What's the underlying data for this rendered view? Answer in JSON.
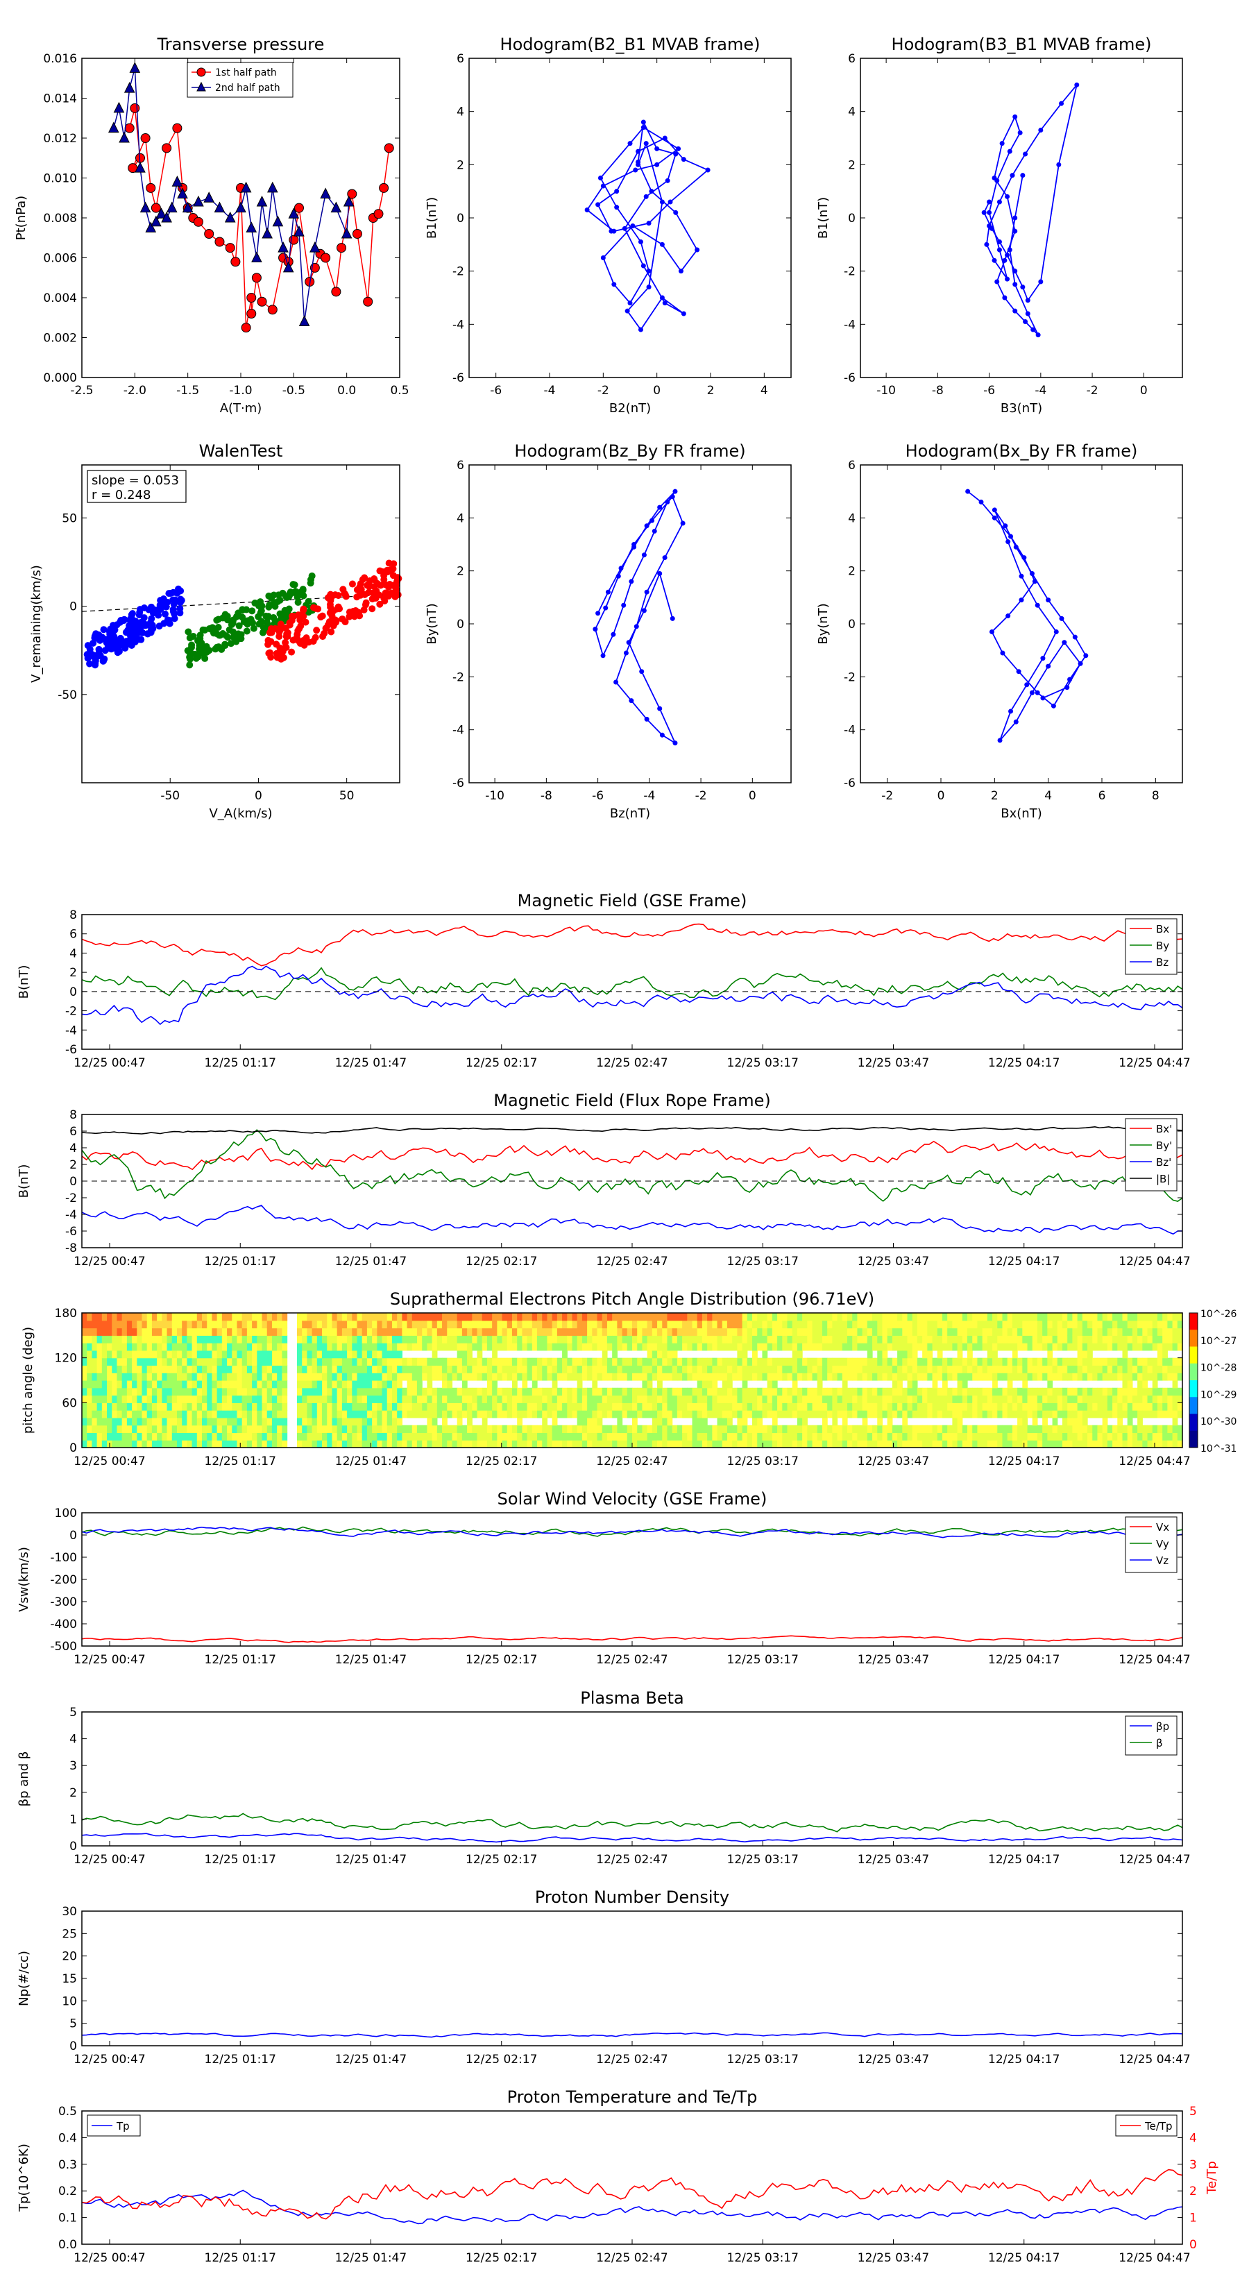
{
  "figure_title": "",
  "chart_data": [
    {
      "id": "tp",
      "type": "scatter",
      "title": "Transverse pressure",
      "xlabel": "A(T·m)",
      "ylabel": "Pt(nPa)",
      "xlim": [
        -2.5,
        0.5
      ],
      "ylim": [
        0,
        0.016
      ],
      "xticks": [
        "-2.5",
        "-2.0",
        "-1.5",
        "-1.0",
        "-0.5",
        "0.0",
        "0.5"
      ],
      "yticks": [
        "0.000",
        "0.002",
        "0.004",
        "0.006",
        "0.008",
        "0.010",
        "0.012",
        "0.014",
        "0.016"
      ],
      "legend": "top-center",
      "series": [
        {
          "name": "1st half path",
          "color": "#ff0000",
          "marker": "circle",
          "x": [
            -2.05,
            -2.0,
            -1.95,
            -2.02,
            -1.9,
            -1.85,
            -1.8,
            -1.7,
            -1.6,
            -1.55,
            -1.5,
            -1.45,
            -1.4,
            -1.3,
            -1.2,
            -1.1,
            -1.05,
            -1.0,
            -0.95,
            -0.9,
            -0.9,
            -0.85,
            -0.8,
            -0.7,
            -0.6,
            -0.55,
            -0.5,
            -0.45,
            -0.35,
            -0.3,
            -0.25,
            -0.2,
            -0.1,
            -0.05,
            0.05,
            0.1,
            0.2,
            0.25,
            0.3,
            0.35,
            0.4
          ],
          "y": [
            0.0125,
            0.0135,
            0.011,
            0.0105,
            0.012,
            0.0095,
            0.0085,
            0.0115,
            0.0125,
            0.0095,
            0.0085,
            0.008,
            0.0078,
            0.0072,
            0.0068,
            0.0065,
            0.0058,
            0.0095,
            0.0025,
            0.004,
            0.0032,
            0.005,
            0.0038,
            0.0034,
            0.006,
            0.0058,
            0.0069,
            0.0085,
            0.0048,
            0.0055,
            0.0062,
            0.006,
            0.0043,
            0.0065,
            0.0092,
            0.0072,
            0.0038,
            0.008,
            0.0082,
            0.0095,
            0.0115
          ]
        },
        {
          "name": "2nd half path",
          "color": "#000099",
          "marker": "triangle",
          "x": [
            -2.2,
            -2.15,
            -2.1,
            -2.05,
            -2.0,
            -1.95,
            -1.9,
            -1.85,
            -1.8,
            -1.75,
            -1.7,
            -1.65,
            -1.6,
            -1.55,
            -1.5,
            -1.4,
            -1.3,
            -1.2,
            -1.1,
            -1.0,
            -0.95,
            -0.9,
            -0.85,
            -0.8,
            -0.75,
            -0.7,
            -0.65,
            -0.6,
            -0.55,
            -0.5,
            -0.45,
            -0.4,
            -0.3,
            -0.2,
            -0.1,
            0.0,
            0.02
          ],
          "y": [
            0.0125,
            0.0135,
            0.012,
            0.0145,
            0.0155,
            0.0105,
            0.0085,
            0.0075,
            0.0078,
            0.0082,
            0.008,
            0.0085,
            0.0098,
            0.0092,
            0.0085,
            0.0088,
            0.009,
            0.0085,
            0.008,
            0.0085,
            0.0095,
            0.0075,
            0.006,
            0.0088,
            0.0072,
            0.0095,
            0.0078,
            0.0065,
            0.0055,
            0.0082,
            0.0073,
            0.0028,
            0.0065,
            0.0092,
            0.0085,
            0.0072,
            0.0088
          ]
        }
      ]
    },
    {
      "id": "h1",
      "type": "line",
      "title": "Hodogram(B2_B1 MVAB frame)",
      "xlabel": "B2(nT)",
      "ylabel": "B1(nT)",
      "xlim": [
        -7,
        5
      ],
      "ylim": [
        -6,
        6
      ],
      "xticks": [
        "-6",
        "-4",
        "-2",
        "0",
        "2",
        "4"
      ],
      "yticks": [
        "-6",
        "-4",
        "-2",
        "0",
        "2",
        "4",
        "6"
      ],
      "color": "#0000ff",
      "x": [
        -1.7,
        -2.2,
        -1.5,
        -0.7,
        0.3,
        1.0,
        1.9,
        0.5,
        -0.3,
        -1.6,
        -2.6,
        -2.0,
        -0.8,
        0.0,
        0.8,
        -0.5,
        -1.0,
        -2.1,
        -1.5,
        -0.6,
        -0.3,
        -1.0,
        -1.6,
        -2.0,
        -0.9,
        0.2,
        0.9,
        1.5,
        0.7,
        -0.2,
        -0.7,
        -0.5,
        0.0,
        0.7,
        0.4,
        -0.4,
        -1.2,
        -0.5,
        0.3,
        1.0,
        0.2,
        -0.6,
        -1.1,
        -0.3,
        0.2,
        -0.4,
        -0.7
      ],
      "y": [
        -0.5,
        0.5,
        1.0,
        2.5,
        3.0,
        2.2,
        1.8,
        0.6,
        -0.2,
        -0.5,
        0.3,
        1.2,
        1.8,
        2.0,
        2.6,
        3.4,
        2.8,
        1.5,
        0.4,
        -0.9,
        -2.0,
        -3.2,
        -2.5,
        -1.5,
        -0.3,
        -1.0,
        -2.0,
        -1.2,
        0.2,
        1.0,
        2.1,
        3.6,
        2.6,
        2.4,
        1.4,
        0.8,
        -0.4,
        -1.8,
        -3.2,
        -3.6,
        -3.0,
        -4.2,
        -3.5,
        -2.6,
        0.6,
        2.8,
        2.0
      ]
    },
    {
      "id": "h2",
      "type": "line",
      "title": "Hodogram(B3_B1 MVAB frame)",
      "xlabel": "B3(nT)",
      "ylabel": "B1(nT)",
      "xlim": [
        -11,
        1.5
      ],
      "ylim": [
        -6,
        6
      ],
      "xticks": [
        "-10",
        "-8",
        "-6",
        "-4",
        "-2",
        "0"
      ],
      "yticks": [
        "-6",
        "-4",
        "-2",
        "0",
        "2",
        "4",
        "6"
      ],
      "color": "#0000ff",
      "x": [
        -6.0,
        -6.2,
        -5.9,
        -5.6,
        -5.3,
        -5.0,
        -4.7,
        -4.5,
        -4.0,
        -3.3,
        -2.6,
        -3.2,
        -4.0,
        -4.6,
        -5.1,
        -5.6,
        -6.0,
        -6.1,
        -5.8,
        -5.3,
        -5.6,
        -6.0,
        -5.7,
        -5.2,
        -4.8,
        -5.0,
        -5.5,
        -5.8,
        -5.3,
        -5.0,
        -5.4,
        -5.7,
        -5.4,
        -5.0,
        -4.6,
        -4.3,
        -4.1,
        -4.5,
        -5.0,
        -5.2,
        -5.0,
        -4.7
      ],
      "y": [
        0.6,
        0.2,
        -0.4,
        -0.9,
        -1.4,
        -2.0,
        -2.6,
        -3.1,
        -2.4,
        2.0,
        5.0,
        4.3,
        3.3,
        2.4,
        1.6,
        0.6,
        -0.3,
        -1.0,
        -1.6,
        -2.3,
        -1.2,
        0.2,
        1.4,
        2.5,
        3.2,
        3.8,
        2.8,
        1.5,
        0.8,
        -0.5,
        -1.6,
        -2.4,
        -3.0,
        -3.5,
        -3.9,
        -4.2,
        -4.4,
        -3.6,
        -2.5,
        -1.2,
        0.0,
        1.6
      ]
    },
    {
      "id": "walen",
      "type": "scatter",
      "title": "WalenTest",
      "xlabel": "V_A(km/s)",
      "ylabel": "V_remaining(km/s)",
      "xlim": [
        -100,
        80
      ],
      "ylim": [
        -100,
        80
      ],
      "xticks": [
        "-50",
        "0",
        "50"
      ],
      "yticks": [
        "-50",
        "0",
        "50"
      ],
      "annotations": [
        "slope = 0.053",
        "r = 0.248"
      ],
      "clusters": [
        {
          "color": "#0000ff",
          "x_range": [
            -97,
            -42
          ],
          "y_center": -12,
          "slope": 0.55,
          "spread": 9
        },
        {
          "color": "#008000",
          "x_range": [
            -40,
            32
          ],
          "y_center": -8,
          "slope": 0.45,
          "spread": 10
        },
        {
          "color": "#ff0000",
          "x_range": [
            5,
            80
          ],
          "y_center": -3,
          "slope": 0.55,
          "spread": 11
        }
      ]
    },
    {
      "id": "h3",
      "type": "line",
      "title": "Hodogram(Bz_By FR frame)",
      "xlabel": "Bz(nT)",
      "ylabel": "By(nT)",
      "xlim": [
        -11,
        1.5
      ],
      "ylim": [
        -6,
        6
      ],
      "xticks": [
        "-10",
        "-8",
        "-6",
        "-4",
        "-2",
        "0"
      ],
      "yticks": [
        "-6",
        "-4",
        "-2",
        "0",
        "2",
        "4",
        "6"
      ],
      "color": "#0000ff",
      "x": [
        -6.0,
        -5.6,
        -5.1,
        -4.6,
        -4.1,
        -3.6,
        -3.0,
        -3.3,
        -3.8,
        -4.2,
        -4.7,
        -5.0,
        -5.4,
        -5.8,
        -6.1,
        -5.7,
        -5.2,
        -4.6,
        -3.9,
        -3.1,
        -2.7,
        -3.4,
        -4.1,
        -4.5,
        -4.9,
        -5.3,
        -4.7,
        -4.1,
        -3.5,
        -3.0,
        -3.6,
        -4.3,
        -4.8,
        -4.2,
        -3.6,
        -3.1
      ],
      "y": [
        0.4,
        1.2,
        2.1,
        2.9,
        3.7,
        4.4,
        5.0,
        4.6,
        3.5,
        2.6,
        1.6,
        0.7,
        -0.4,
        -1.2,
        -0.2,
        0.6,
        1.8,
        3.0,
        3.9,
        4.8,
        3.8,
        2.5,
        1.2,
        -0.1,
        -1.1,
        -2.2,
        -2.9,
        -3.6,
        -4.2,
        -4.5,
        -3.2,
        -1.8,
        -0.7,
        0.5,
        1.9,
        0.2
      ]
    },
    {
      "id": "h4",
      "type": "line",
      "title": "Hodogram(Bx_By FR frame)",
      "xlabel": "Bx(nT)",
      "ylabel": "By(nT)",
      "xlim": [
        -3,
        9
      ],
      "ylim": [
        -6,
        6
      ],
      "xticks": [
        "-2",
        "0",
        "2",
        "4",
        "6",
        "8"
      ],
      "yticks": [
        "-6",
        "-4",
        "-2",
        "0",
        "2",
        "4",
        "6"
      ],
      "color": "#0000ff",
      "x": [
        1.0,
        1.5,
        2.0,
        2.6,
        3.1,
        3.5,
        3.0,
        2.5,
        1.9,
        2.3,
        2.9,
        3.6,
        4.2,
        4.8,
        5.4,
        5.0,
        4.5,
        4.0,
        3.4,
        2.8,
        2.4,
        2.0,
        2.5,
        3.0,
        3.6,
        4.3,
        3.8,
        3.2,
        2.6,
        2.2,
        2.8,
        3.4,
        4.0,
        4.6,
        5.2,
        4.7,
        3.8
      ],
      "y": [
        5.0,
        4.6,
        4.0,
        3.3,
        2.5,
        1.6,
        0.9,
        0.3,
        -0.3,
        -1.1,
        -1.8,
        -2.6,
        -3.1,
        -2.1,
        -1.2,
        -0.5,
        0.2,
        0.9,
        1.9,
        2.9,
        3.7,
        4.3,
        3.1,
        1.8,
        0.7,
        -0.3,
        -1.3,
        -2.3,
        -3.3,
        -4.4,
        -3.7,
        -2.6,
        -1.6,
        -0.7,
        -1.5,
        -2.4,
        -2.8
      ]
    },
    {
      "id": "ts1",
      "type": "line",
      "title": "Magnetic Field (GSE Frame)",
      "ylabel": "B(nT)",
      "ylim": [
        -6,
        8
      ],
      "yticks": [
        "-6",
        "-4",
        "-2",
        "0",
        "2",
        "4",
        "6",
        "8"
      ],
      "zero_line": true,
      "legend": "top-right",
      "series": [
        {
          "name": "Bx",
          "color": "#ff0000",
          "start": [
            5.5,
            4.8,
            4.0,
            3.2,
            4.5
          ],
          "mean": 6.0,
          "noise": 0.35
        },
        {
          "name": "By",
          "color": "#008000",
          "start": [
            1.5,
            1.0,
            0.0,
            -1.0,
            2.0
          ],
          "mean": 0.6,
          "noise": 0.6
        },
        {
          "name": "Bz",
          "color": "#0000ff",
          "start": [
            -2.0,
            -4.0,
            2.0,
            3.5,
            1.0
          ],
          "mean": -0.8,
          "noise": 0.5
        }
      ]
    },
    {
      "id": "ts2",
      "type": "line",
      "title": "Magnetic Field (Flux Rope Frame)",
      "ylabel": "B(nT)",
      "ylim": [
        -8,
        8
      ],
      "yticks": [
        "-8",
        "-6",
        "-4",
        "-2",
        "0",
        "2",
        "4",
        "6",
        "8"
      ],
      "zero_line": true,
      "legend": "top-right",
      "series": [
        {
          "name": "Bx'",
          "color": "#ff0000",
          "start": [
            3.5,
            2.5,
            3.0,
            2.0
          ],
          "mean": 3.2,
          "noise": 0.6
        },
        {
          "name": "By'",
          "color": "#008000",
          "start": [
            3.0,
            -3.0,
            4.5,
            4.5,
            2.0
          ],
          "mean": -0.3,
          "noise": 0.8
        },
        {
          "name": "Bz'",
          "color": "#0000ff",
          "start": [
            -4.0,
            -4.5,
            -4.0,
            -5.0
          ],
          "mean": -5.3,
          "noise": 0.4
        },
        {
          "name": "|B|",
          "color": "#000000",
          "start": [
            5.8,
            6.0,
            6.0
          ],
          "mean": 6.3,
          "noise": 0.1
        }
      ]
    },
    {
      "id": "ts3",
      "type": "heatmap",
      "title": "Suprathermal Electrons Pitch Angle Distribution (96.71eV)",
      "ylabel": "pitch angle (deg)",
      "ylim": [
        0,
        180
      ],
      "yticks": [
        "0",
        "60",
        "120",
        "180"
      ],
      "colorbar_ticks": [
        "10^-26",
        "10^-27",
        "10^-28",
        "10^-29",
        "10^-30",
        "10^-31"
      ]
    },
    {
      "id": "ts4",
      "type": "line",
      "title": "Solar Wind Velocity (GSE Frame)",
      "ylabel": "Vsw(km/s)",
      "ylim": [
        -500,
        100
      ],
      "yticks": [
        "-500",
        "-400",
        "-300",
        "-200",
        "-100",
        "0",
        "100"
      ],
      "legend": "top-right",
      "series": [
        {
          "name": "Vx",
          "color": "#ff0000",
          "start": [
            -470,
            -475,
            -480
          ],
          "mean": -468,
          "noise": 4
        },
        {
          "name": "Vy",
          "color": "#008000",
          "start": [
            10,
            20,
            30
          ],
          "mean": 15,
          "noise": 8
        },
        {
          "name": "Vz",
          "color": "#0000ff",
          "start": [
            15,
            25,
            30
          ],
          "mean": 10,
          "noise": 7
        }
      ]
    },
    {
      "id": "ts5",
      "type": "line",
      "title": "Plasma Beta",
      "ylabel": "βp and β",
      "ylim": [
        0,
        5
      ],
      "yticks": [
        "0",
        "1",
        "2",
        "3",
        "4",
        "5"
      ],
      "legend": "top-right",
      "series": [
        {
          "name": "βp",
          "color": "#0000ff",
          "start": [
            0.4,
            0.35,
            0.4
          ],
          "mean": 0.25,
          "noise": 0.04
        },
        {
          "name": "β",
          "color": "#008000",
          "start": [
            1.0,
            1.2,
            0.9
          ],
          "mean": 0.75,
          "noise": 0.1
        }
      ]
    },
    {
      "id": "ts6",
      "type": "line",
      "title": "Proton Number Density",
      "ylabel": "Np(#/cc)",
      "ylim": [
        0,
        30
      ],
      "yticks": [
        "0",
        "5",
        "10",
        "15",
        "20",
        "25",
        "30"
      ],
      "series": [
        {
          "name": "Np",
          "color": "#0000ff",
          "start": [
            2.5,
            2.3,
            2.4
          ],
          "mean": 2.4,
          "noise": 0.2
        }
      ]
    },
    {
      "id": "ts7",
      "type": "line",
      "title": "Proton Temperature and Te/Tp",
      "ylabel": "Tp(10^6K)",
      "ylim": [
        0,
        0.5
      ],
      "yticks": [
        "0.0",
        "0.1",
        "0.2",
        "0.3",
        "0.4",
        "0.5"
      ],
      "ylabel_right": "Te/Tp",
      "ylim_right": [
        0,
        5
      ],
      "yticks_right": [
        "0",
        "1",
        "2",
        "3",
        "4",
        "5"
      ],
      "legend_left": "Tp",
      "legend_right": "Te/Tp",
      "series": [
        {
          "name": "Tp",
          "color": "#0000ff",
          "axis": "left",
          "start": [
            0.15,
            0.18,
            0.13
          ],
          "mean": 0.11,
          "noise": 0.012
        },
        {
          "name": "Te/Tp",
          "color": "#ff0000",
          "axis": "right",
          "start": [
            1.5,
            1.6,
            1.4
          ],
          "mean": 2.1,
          "noise": 0.25
        }
      ]
    }
  ],
  "time_ticks": [
    "12/25 00:47",
    "12/25 01:17",
    "12/25 01:47",
    "12/25 02:17",
    "12/25 02:47",
    "12/25 03:17",
    "12/25 03:47",
    "12/25 04:17",
    "12/25 04:47"
  ]
}
